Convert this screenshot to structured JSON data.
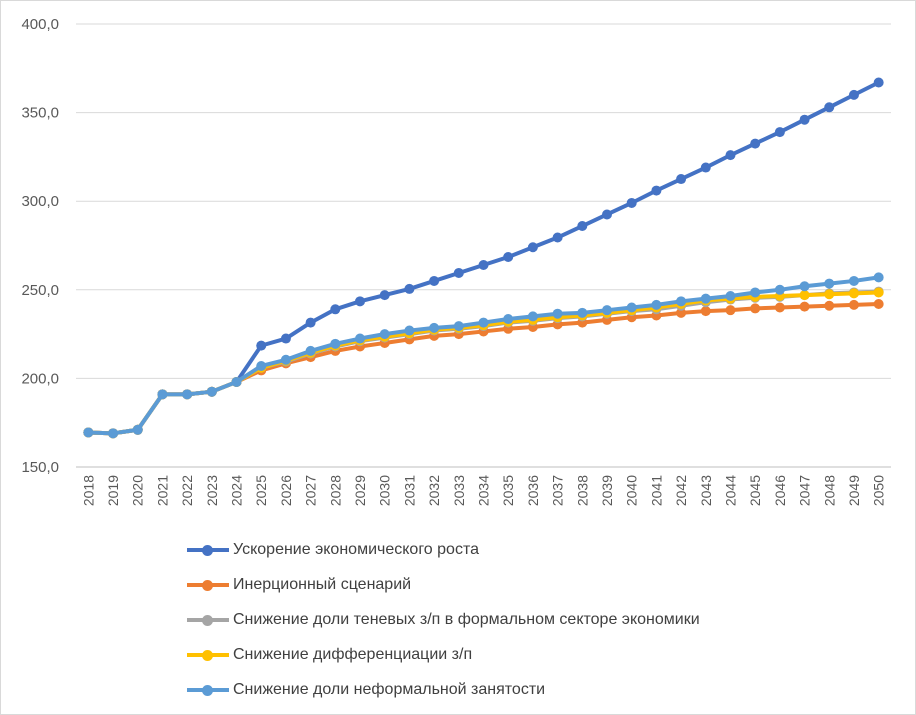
{
  "chart_data": {
    "type": "line",
    "title": "",
    "xlabel": "",
    "ylabel": "",
    "ylim": [
      150,
      400
    ],
    "yticks": [
      "150,0",
      "200,0",
      "250,0",
      "300,0",
      "350,0",
      "400,0"
    ],
    "ytick_values": [
      150,
      200,
      250,
      300,
      350,
      400
    ],
    "grid": "horizontal",
    "legend_position": "bottom",
    "categories": [
      "2018",
      "2019",
      "2020",
      "2021",
      "2022",
      "2023",
      "2024",
      "2025",
      "2026",
      "2027",
      "2028",
      "2029",
      "2030",
      "2031",
      "2032",
      "2033",
      "2034",
      "2035",
      "2036",
      "2037",
      "2038",
      "2039",
      "2040",
      "2041",
      "2042",
      "2043",
      "2044",
      "2045",
      "2046",
      "2047",
      "2048",
      "2049",
      "2050"
    ],
    "series": [
      {
        "name": "Ускорение экономического роста",
        "color": "#4472c4",
        "values": [
          169.5,
          169,
          171,
          191,
          191,
          192.5,
          198,
          218.5,
          222.5,
          231.5,
          239,
          243.5,
          247,
          250.5,
          255,
          259.5,
          264,
          268.5,
          274,
          279.5,
          286,
          292.5,
          299,
          306,
          312.5,
          319,
          326,
          332.5,
          339,
          346,
          353,
          360,
          367
        ]
      },
      {
        "name": "Инерционный сценарий",
        "color": "#ed7d31",
        "values": [
          169.5,
          169,
          171,
          191,
          191,
          192.5,
          198,
          204.5,
          208.5,
          212,
          215.5,
          218,
          220,
          222,
          224,
          225,
          226.5,
          228,
          229,
          230.5,
          231.5,
          233,
          234.5,
          235.5,
          237,
          238,
          238.5,
          239.5,
          240,
          240.5,
          241,
          241.5,
          242
        ]
      },
      {
        "name": "Снижение доли теневых з/п в формальном секторе экономики",
        "color": "#a5a5a5",
        "values": [
          169.5,
          169,
          171,
          191,
          191,
          192.5,
          198,
          206,
          209.5,
          214,
          218,
          221,
          223,
          225,
          227,
          228,
          229.5,
          231.5,
          232.5,
          234,
          235,
          236.5,
          238,
          239,
          241,
          243,
          244.5,
          245.5,
          246,
          247,
          248,
          248.5,
          249
        ]
      },
      {
        "name": "Снижение дифференциации з/п",
        "color": "#ffc000",
        "values": [
          169.5,
          169,
          171,
          191,
          191,
          192.5,
          198,
          206,
          210,
          214.5,
          218.5,
          221.5,
          223.5,
          225.5,
          227.5,
          228.5,
          230,
          232,
          233,
          234.5,
          235.5,
          237,
          238.5,
          240,
          242,
          244,
          245,
          246,
          246.5,
          247,
          247.5,
          248,
          248.5
        ]
      },
      {
        "name": "Снижение доли неформальной занятости",
        "color": "#5b9bd5",
        "values": [
          169.5,
          169,
          171,
          191,
          191,
          192.5,
          198,
          207,
          210.5,
          215.5,
          219.5,
          222.5,
          225,
          227,
          228.5,
          229.5,
          231.5,
          233.5,
          235,
          236.5,
          237,
          238.5,
          240,
          241.5,
          243.5,
          245,
          246.5,
          248.5,
          250,
          252,
          253.5,
          255,
          257
        ]
      }
    ]
  }
}
